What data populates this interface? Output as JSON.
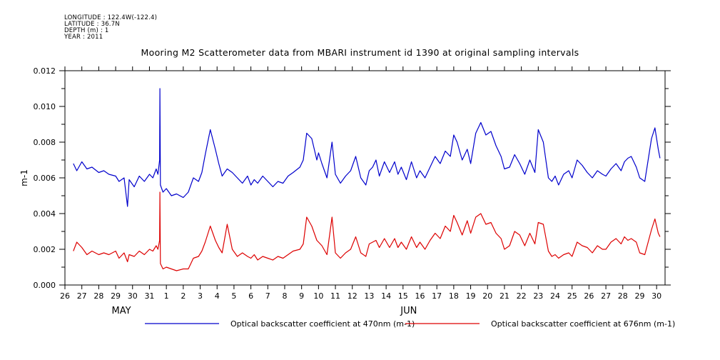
{
  "meta": {
    "longitude": "LONGITUDE : 122.4W(-122.4)",
    "latitude": "LATITUDE : 36.7N",
    "depth": "DEPTH (m) : 1",
    "year": "YEAR : 2011"
  },
  "chart_data": {
    "type": "line",
    "title": "Mooring M2 Scatterometer data from MBARI instrument id 1390 at original sampling intervals",
    "ylabel": "m-1",
    "xlabel": "",
    "ylim": [
      0,
      0.012
    ],
    "yticks": [
      "0.000",
      "0.002",
      "0.004",
      "0.006",
      "0.008",
      "0.010",
      "0.012"
    ],
    "xlim": [
      0,
      35.5
    ],
    "xtick_labels": [
      "26",
      "27",
      "28",
      "29",
      "30",
      "31",
      "1",
      "2",
      "3",
      "4",
      "5",
      "6",
      "7",
      "8",
      "9",
      "10",
      "11",
      "12",
      "13",
      "14",
      "15",
      "16",
      "17",
      "18",
      "19",
      "20",
      "21",
      "22",
      "23",
      "24",
      "25",
      "26",
      "27",
      "28",
      "29",
      "30"
    ],
    "month_labels": [
      {
        "label": "MAY",
        "x": 3
      },
      {
        "label": "JUN",
        "x": 20
      }
    ],
    "x_units": "days since May 26 (day 0 = May 26, day 6 = Jun 1, day 35 = Jun 30)",
    "series": [
      {
        "name": "Optical backscatter coefficient at 470nm (m-1)",
        "color": "#0000cc",
        "x": [
          0.5,
          0.7,
          1.0,
          1.3,
          1.6,
          2.0,
          2.3,
          2.6,
          3.0,
          3.2,
          3.5,
          3.7,
          3.8,
          4.1,
          4.4,
          4.7,
          5.0,
          5.2,
          5.4,
          5.5,
          5.6,
          5.62,
          5.65,
          5.8,
          6.0,
          6.3,
          6.6,
          7.0,
          7.3,
          7.6,
          7.9,
          8.1,
          8.3,
          8.6,
          8.9,
          9.1,
          9.3,
          9.6,
          9.9,
          10.2,
          10.5,
          10.8,
          11.0,
          11.2,
          11.4,
          11.7,
          12.0,
          12.3,
          12.6,
          12.9,
          13.2,
          13.5,
          13.9,
          14.1,
          14.3,
          14.6,
          14.9,
          15.0,
          15.2,
          15.5,
          15.8,
          16.0,
          16.3,
          16.6,
          16.9,
          17.2,
          17.5,
          17.8,
          18.0,
          18.2,
          18.4,
          18.6,
          18.9,
          19.2,
          19.5,
          19.7,
          19.9,
          20.2,
          20.5,
          20.8,
          21.0,
          21.3,
          21.6,
          21.9,
          22.2,
          22.5,
          22.8,
          23.0,
          23.2,
          23.5,
          23.8,
          24.0,
          24.3,
          24.6,
          24.9,
          25.2,
          25.5,
          25.8,
          26.0,
          26.3,
          26.6,
          26.9,
          27.2,
          27.5,
          27.8,
          28.0,
          28.3,
          28.6,
          28.8,
          29.0,
          29.2,
          29.5,
          29.8,
          30.0,
          30.3,
          30.6,
          30.9,
          31.2,
          31.5,
          31.8,
          32.0,
          32.3,
          32.6,
          32.9,
          33.1,
          33.3,
          33.5,
          33.8,
          34.0,
          34.3,
          34.5,
          34.7,
          34.9,
          35.1,
          35.2
        ],
        "y": [
          0.0068,
          0.0064,
          0.0069,
          0.0065,
          0.0066,
          0.0063,
          0.0064,
          0.0062,
          0.0061,
          0.0058,
          0.006,
          0.0044,
          0.0059,
          0.0055,
          0.0061,
          0.0058,
          0.0062,
          0.006,
          0.0065,
          0.0062,
          0.007,
          0.011,
          0.0056,
          0.0052,
          0.0054,
          0.005,
          0.0051,
          0.0049,
          0.0052,
          0.006,
          0.0058,
          0.0063,
          0.0073,
          0.0087,
          0.0076,
          0.0068,
          0.0061,
          0.0065,
          0.0063,
          0.006,
          0.0057,
          0.0061,
          0.0056,
          0.0059,
          0.0057,
          0.0061,
          0.0058,
          0.0055,
          0.0058,
          0.0057,
          0.0061,
          0.0063,
          0.0066,
          0.007,
          0.0085,
          0.0082,
          0.007,
          0.0074,
          0.0068,
          0.006,
          0.008,
          0.0062,
          0.0057,
          0.0061,
          0.0064,
          0.0072,
          0.006,
          0.0056,
          0.0064,
          0.0066,
          0.007,
          0.0061,
          0.0069,
          0.0063,
          0.0069,
          0.0062,
          0.0066,
          0.0059,
          0.0069,
          0.006,
          0.0064,
          0.006,
          0.0066,
          0.0072,
          0.0068,
          0.0075,
          0.0072,
          0.0084,
          0.008,
          0.007,
          0.0076,
          0.0068,
          0.0085,
          0.0091,
          0.0084,
          0.0086,
          0.0078,
          0.0072,
          0.0065,
          0.0066,
          0.0073,
          0.0068,
          0.0062,
          0.007,
          0.0063,
          0.0087,
          0.008,
          0.006,
          0.0058,
          0.0061,
          0.0056,
          0.0062,
          0.0064,
          0.006,
          0.007,
          0.0067,
          0.0063,
          0.006,
          0.0064,
          0.0062,
          0.0061,
          0.0065,
          0.0068,
          0.0064,
          0.0069,
          0.0071,
          0.0072,
          0.0066,
          0.006,
          0.0058,
          0.007,
          0.0082,
          0.0088,
          0.0076,
          0.0071
        ]
      },
      {
        "name": "Optical backscatter coefficient at 676nm (m-1)",
        "color": "#dd0000",
        "x": [
          0.5,
          0.7,
          1.0,
          1.3,
          1.6,
          2.0,
          2.3,
          2.6,
          3.0,
          3.2,
          3.5,
          3.7,
          3.8,
          4.1,
          4.4,
          4.7,
          5.0,
          5.2,
          5.4,
          5.5,
          5.6,
          5.62,
          5.65,
          5.8,
          6.0,
          6.3,
          6.6,
          7.0,
          7.3,
          7.6,
          7.9,
          8.1,
          8.3,
          8.6,
          8.9,
          9.1,
          9.3,
          9.6,
          9.9,
          10.2,
          10.5,
          10.8,
          11.0,
          11.2,
          11.4,
          11.7,
          12.0,
          12.3,
          12.6,
          12.9,
          13.2,
          13.5,
          13.9,
          14.1,
          14.3,
          14.6,
          14.9,
          15.0,
          15.2,
          15.5,
          15.8,
          16.0,
          16.3,
          16.6,
          16.9,
          17.2,
          17.5,
          17.8,
          18.0,
          18.2,
          18.4,
          18.6,
          18.9,
          19.2,
          19.5,
          19.7,
          19.9,
          20.2,
          20.5,
          20.8,
          21.0,
          21.3,
          21.6,
          21.9,
          22.2,
          22.5,
          22.8,
          23.0,
          23.2,
          23.5,
          23.8,
          24.0,
          24.3,
          24.6,
          24.9,
          25.2,
          25.5,
          25.8,
          26.0,
          26.3,
          26.6,
          26.9,
          27.2,
          27.5,
          27.8,
          28.0,
          28.3,
          28.6,
          28.8,
          29.0,
          29.2,
          29.5,
          29.8,
          30.0,
          30.3,
          30.6,
          30.9,
          31.2,
          31.5,
          31.8,
          32.0,
          32.3,
          32.6,
          32.9,
          33.1,
          33.3,
          33.5,
          33.8,
          34.0,
          34.3,
          34.5,
          34.7,
          34.9,
          35.1,
          35.2
        ],
        "y": [
          0.0019,
          0.0024,
          0.0021,
          0.0017,
          0.0019,
          0.0017,
          0.0018,
          0.0017,
          0.0019,
          0.0015,
          0.0018,
          0.0013,
          0.0017,
          0.0016,
          0.0019,
          0.0017,
          0.002,
          0.0019,
          0.0022,
          0.002,
          0.0025,
          0.0052,
          0.0012,
          0.0009,
          0.001,
          0.0009,
          0.0008,
          0.0009,
          0.0009,
          0.0015,
          0.0016,
          0.0019,
          0.0024,
          0.0033,
          0.0025,
          0.0021,
          0.0018,
          0.0034,
          0.002,
          0.0016,
          0.0018,
          0.0016,
          0.0015,
          0.0017,
          0.0014,
          0.0016,
          0.0015,
          0.0014,
          0.0016,
          0.0015,
          0.0017,
          0.0019,
          0.002,
          0.0023,
          0.0038,
          0.0033,
          0.0025,
          0.0024,
          0.0022,
          0.0017,
          0.0038,
          0.0018,
          0.0015,
          0.0018,
          0.002,
          0.0027,
          0.0018,
          0.0016,
          0.0023,
          0.0024,
          0.0025,
          0.0021,
          0.0026,
          0.0021,
          0.0026,
          0.0021,
          0.0024,
          0.002,
          0.0027,
          0.0021,
          0.0024,
          0.002,
          0.0025,
          0.0029,
          0.0026,
          0.0033,
          0.003,
          0.0039,
          0.0035,
          0.0028,
          0.0036,
          0.0029,
          0.0038,
          0.004,
          0.0034,
          0.0035,
          0.0029,
          0.0026,
          0.002,
          0.0022,
          0.003,
          0.0028,
          0.0022,
          0.0029,
          0.0023,
          0.0035,
          0.0034,
          0.0019,
          0.0016,
          0.0017,
          0.0015,
          0.0017,
          0.0018,
          0.0016,
          0.0024,
          0.0022,
          0.0021,
          0.0018,
          0.0022,
          0.002,
          0.002,
          0.0024,
          0.0026,
          0.0023,
          0.0027,
          0.0025,
          0.0026,
          0.0024,
          0.0018,
          0.0017,
          0.0024,
          0.0031,
          0.0037,
          0.0029,
          0.0027
        ]
      }
    ]
  }
}
